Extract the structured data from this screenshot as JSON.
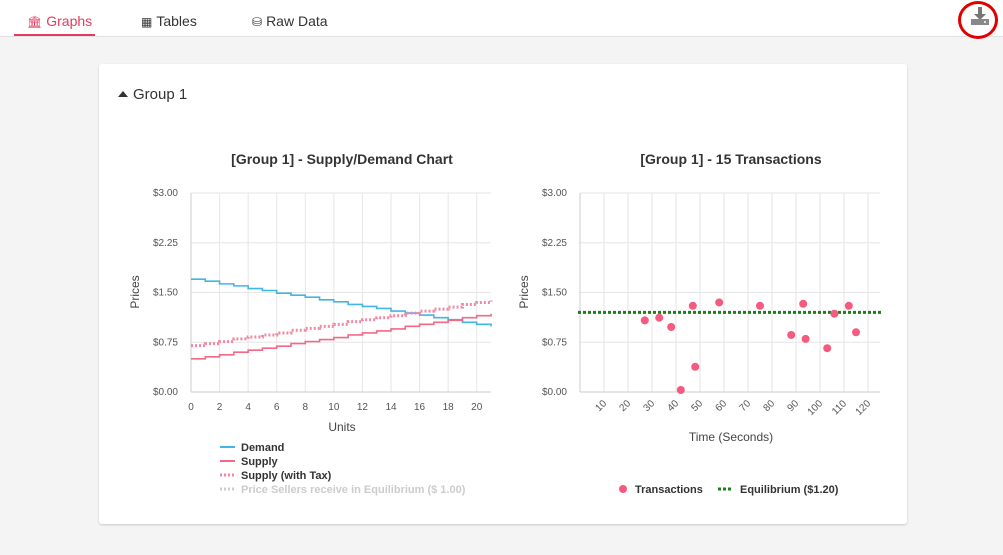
{
  "tabs": [
    {
      "label": "Graphs",
      "icon": "bank-icon",
      "active": true
    },
    {
      "label": "Tables",
      "icon": "table-icon",
      "active": false
    },
    {
      "label": "Raw Data",
      "icon": "database-icon",
      "active": false
    }
  ],
  "download_icon": "download-icon",
  "group": {
    "label": "Group 1"
  },
  "colors": {
    "accent": "#e8385e",
    "demand": "#41b6e6",
    "supply": "#f06a86",
    "tax": "#f08aa2",
    "equilibrium_hidden": "#cccccc",
    "transactions": "#f45b7e",
    "equilibrium_line": "#1a7f1a"
  },
  "chart_data": [
    {
      "type": "line",
      "title": "[Group 1] - Supply/Demand Chart",
      "xlabel": "Units",
      "ylabel": "Prices",
      "xlim": [
        0,
        21
      ],
      "ylim": [
        0,
        3
      ],
      "x_ticks": [
        "0",
        "2",
        "4",
        "6",
        "8",
        "10",
        "12",
        "14",
        "16",
        "18",
        "20"
      ],
      "y_ticks": [
        "$0.00",
        "$0.75",
        "$1.50",
        "$2.25",
        "$3.00"
      ],
      "step": true,
      "series": [
        {
          "name": "Demand",
          "style": "solid",
          "x": [
            0,
            1,
            2,
            3,
            4,
            5,
            6,
            7,
            8,
            9,
            10,
            11,
            12,
            13,
            14,
            15,
            16,
            17,
            18,
            19,
            20,
            21
          ],
          "values": [
            1.7,
            1.67,
            1.63,
            1.6,
            1.56,
            1.53,
            1.49,
            1.46,
            1.43,
            1.39,
            1.36,
            1.32,
            1.29,
            1.26,
            1.22,
            1.19,
            1.16,
            1.12,
            1.09,
            1.05,
            1.02,
            0.99
          ]
        },
        {
          "name": "Supply",
          "style": "solid",
          "x": [
            0,
            1,
            2,
            3,
            4,
            5,
            6,
            7,
            8,
            9,
            10,
            11,
            12,
            13,
            14,
            15,
            16,
            17,
            18,
            19,
            20,
            21
          ],
          "values": [
            0.5,
            0.53,
            0.56,
            0.6,
            0.63,
            0.66,
            0.69,
            0.73,
            0.76,
            0.79,
            0.82,
            0.86,
            0.89,
            0.92,
            0.95,
            0.99,
            1.02,
            1.05,
            1.08,
            1.12,
            1.15,
            1.18
          ]
        },
        {
          "name": "Supply (with Tax)",
          "style": "dotted",
          "x": [
            0,
            1,
            2,
            3,
            4,
            5,
            6,
            7,
            8,
            9,
            10,
            11,
            12,
            13,
            14,
            15,
            16,
            17,
            18,
            19,
            20,
            21
          ],
          "values": [
            0.7,
            0.73,
            0.76,
            0.8,
            0.83,
            0.86,
            0.89,
            0.93,
            0.96,
            0.99,
            1.02,
            1.06,
            1.09,
            1.12,
            1.15,
            1.19,
            1.22,
            1.25,
            1.28,
            1.32,
            1.35,
            1.38
          ]
        },
        {
          "name": "Price Sellers receive in Equilibrium ($ 1.00)",
          "style": "dotted",
          "hidden": true,
          "values": []
        }
      ],
      "legend": "bottom"
    },
    {
      "type": "scatter",
      "title": "[Group 1] - 15 Transactions",
      "xlabel": "Time (Seconds)",
      "ylabel": "Prices",
      "xlim": [
        0,
        125
      ],
      "ylim": [
        0,
        3
      ],
      "x_ticks": [
        "10",
        "20",
        "30",
        "40",
        "50",
        "60",
        "70",
        "80",
        "90",
        "100",
        "110",
        "120"
      ],
      "y_ticks": [
        "$0.00",
        "$0.75",
        "$1.50",
        "$2.25",
        "$3.00"
      ],
      "series": [
        {
          "name": "Transactions",
          "points": [
            [
              27,
              1.08
            ],
            [
              33,
              1.12
            ],
            [
              38,
              0.98
            ],
            [
              42,
              0.03
            ],
            [
              47,
              1.3
            ],
            [
              48,
              0.38
            ],
            [
              58,
              1.35
            ],
            [
              75,
              1.3
            ],
            [
              88,
              0.86
            ],
            [
              93,
              1.33
            ],
            [
              94,
              0.8
            ],
            [
              103,
              0.66
            ],
            [
              106,
              1.18
            ],
            [
              112,
              1.3
            ],
            [
              115,
              0.9
            ]
          ]
        },
        {
          "name": "Equilibrium ($1.20)",
          "style": "dotted",
          "y": 1.2
        }
      ],
      "legend": "bottom"
    }
  ]
}
